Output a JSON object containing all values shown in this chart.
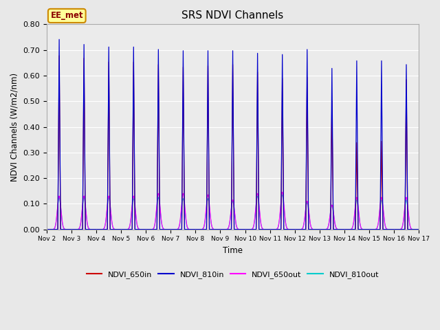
{
  "title": "SRS NDVI Channels",
  "ylabel": "NDVI Channels (W/m2/nm)",
  "xlabel": "Time",
  "ylim": [
    0.0,
    0.8
  ],
  "yticks": [
    0.0,
    0.1,
    0.2,
    0.3,
    0.4,
    0.5,
    0.6,
    0.7,
    0.8
  ],
  "fig_bg_color": "#e8e8e8",
  "plot_bg_color": "#ebebeb",
  "annotation_text": "EE_met",
  "annotation_bg": "#ffff99",
  "annotation_border": "#cc8800",
  "colors": {
    "NDVI_650in": "#cc0000",
    "NDVI_810in": "#0000cc",
    "NDVI_650out": "#ff00ff",
    "NDVI_810out": "#00cccc"
  },
  "xtick_labels": [
    "Nov 2",
    "Nov 3",
    "Nov 4",
    "Nov 5",
    "Nov 6",
    "Nov 7",
    "Nov 8",
    "Nov 9",
    "Nov 10",
    "Nov 11",
    "Nov 12",
    "Nov 13",
    "Nov 14",
    "Nov 15",
    "Nov 16",
    "Nov 17"
  ],
  "day_peaks_810in": [
    0.755,
    0.735,
    0.725,
    0.725,
    0.715,
    0.71,
    0.71,
    0.71,
    0.7,
    0.695,
    0.715,
    0.64,
    0.67,
    0.67,
    0.655
  ],
  "day_peaks_650in": [
    0.69,
    0.68,
    0.665,
    0.665,
    0.655,
    0.645,
    0.65,
    0.655,
    0.625,
    0.6,
    0.605,
    0.51,
    0.345,
    0.35,
    0.595
  ],
  "day_peaks_650out": [
    0.13,
    0.13,
    0.13,
    0.13,
    0.14,
    0.14,
    0.135,
    0.115,
    0.14,
    0.145,
    0.11,
    0.095,
    0.125,
    0.125,
    0.125
  ],
  "day_peaks_810out": [
    0.125,
    0.125,
    0.125,
    0.12,
    0.125,
    0.12,
    0.12,
    0.11,
    0.13,
    0.135,
    0.105,
    0.095,
    0.115,
    0.115,
    0.115
  ],
  "peak_hw_in": 0.055,
  "peak_hw_out": 0.18,
  "points_per_day": 500,
  "n_days": 15
}
